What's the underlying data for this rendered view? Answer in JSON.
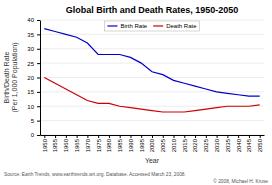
{
  "chart_data": {
    "type": "line",
    "title": "Global Birth and Death Rates, 1950-2050",
    "xlabel": "Year",
    "ylabel": "Birth/Death Rate\n(Per 1,000 Population)",
    "x": [
      1950,
      1955,
      1960,
      1965,
      1970,
      1975,
      1980,
      1985,
      1990,
      1995,
      2000,
      2005,
      2010,
      2015,
      2020,
      2025,
      2030,
      2035,
      2040,
      2045,
      2050
    ],
    "series": [
      {
        "name": "Birth Rate",
        "color": "#0000cc",
        "values": [
          37,
          36,
          35,
          34,
          32,
          28,
          28,
          28,
          27,
          25,
          22,
          21,
          19,
          18,
          17,
          16,
          15,
          14.5,
          14,
          13.5,
          13.5
        ]
      },
      {
        "name": "Death Rate",
        "color": "#cc0000",
        "values": [
          20,
          18,
          16,
          14,
          12,
          11,
          11,
          10,
          9.5,
          9,
          8.5,
          8,
          8,
          8,
          8.5,
          9,
          9.5,
          10,
          10,
          10,
          10.5
        ]
      }
    ],
    "xlim": [
      1948,
      2052
    ],
    "xticks": [
      1950,
      1955,
      1960,
      1965,
      1970,
      1975,
      1980,
      1985,
      1990,
      1995,
      2000,
      2005,
      2010,
      2015,
      2020,
      2025,
      2030,
      2035,
      2040,
      2045,
      2050
    ],
    "ylim": [
      0,
      40
    ],
    "yticks": [
      0,
      5,
      10,
      15,
      20,
      25,
      30,
      35,
      40
    ],
    "grid": true,
    "legend": "top",
    "annotations": [
      "Source: Earth Trends, www.earthtrends.wri.org. Database.  Accessed March 23, 2008.",
      "© 2008, Michael H. Kruse"
    ]
  }
}
